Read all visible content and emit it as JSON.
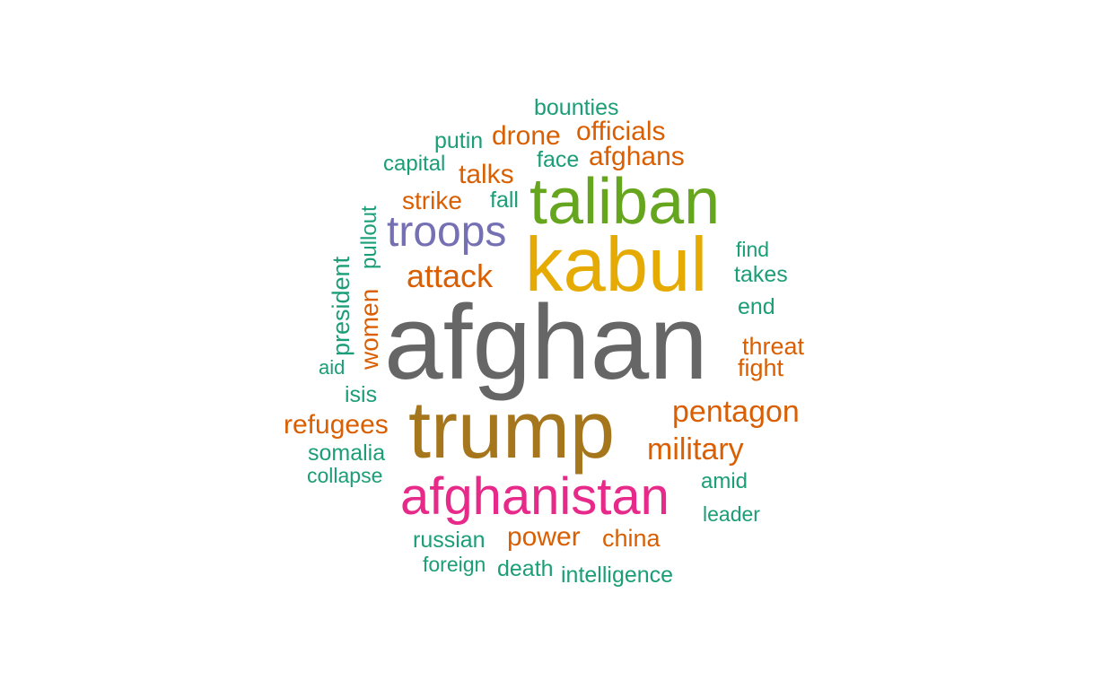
{
  "colors": {
    "green": "#1b9e77",
    "orange": "#d95f02",
    "purple": "#7570b3",
    "pink": "#e7298a",
    "lime": "#66a61e",
    "gold": "#e6ab02",
    "brown": "#a6761d",
    "gray": "#666666"
  },
  "words": {
    "afghan": "afghan",
    "trump": "trump",
    "kabul": "kabul",
    "taliban": "taliban",
    "afghanistan": "afghanistan",
    "troops": "troops",
    "attack": "attack",
    "pentagon": "pentagon",
    "military": "military",
    "refugees": "refugees",
    "officials": "officials",
    "drone": "drone",
    "afghans": "afghans",
    "talks": "talks",
    "strike": "strike",
    "power": "power",
    "china": "china",
    "threat": "threat",
    "fight": "fight",
    "women": "women",
    "president": "president",
    "pullout": "pullout",
    "bounties": "bounties",
    "putin": "putin",
    "capital": "capital",
    "face": "face",
    "fall": "fall",
    "find": "find",
    "takes": "takes",
    "end": "end",
    "aid": "aid",
    "isis": "isis",
    "somalia": "somalia",
    "collapse": "collapse",
    "amid": "amid",
    "leader": "leader",
    "russian": "russian",
    "foreign": "foreign",
    "death": "death",
    "intelligence": "intelligence"
  }
}
